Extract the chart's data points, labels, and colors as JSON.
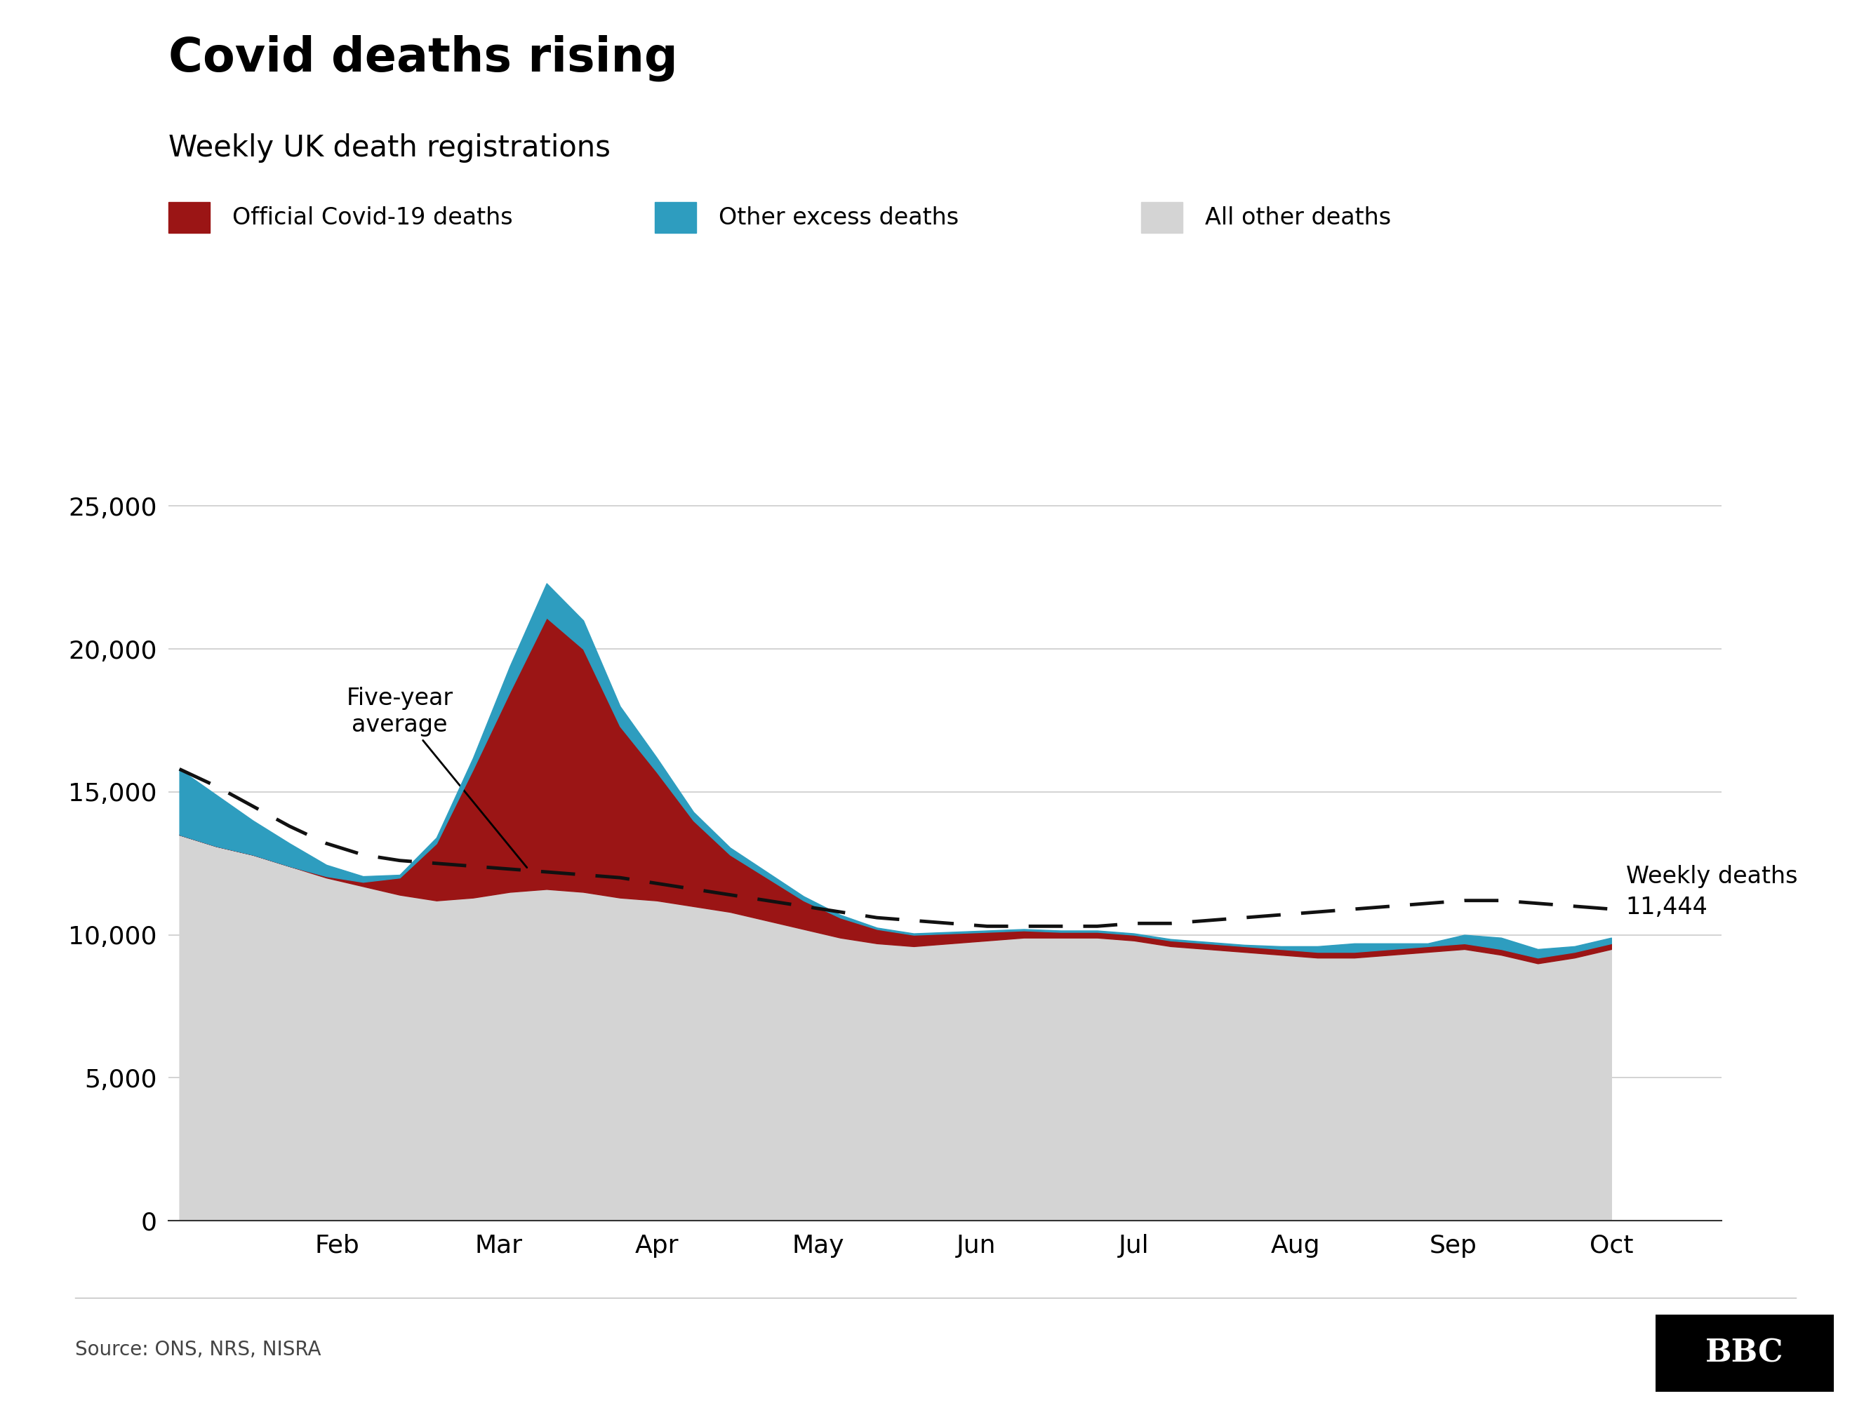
{
  "title": "Covid deaths rising",
  "subtitle": "Weekly UK death registrations",
  "legend_items": [
    {
      "label": "Official Covid-19 deaths",
      "color": "#9b1515"
    },
    {
      "label": "Other excess deaths",
      "color": "#2e9dbf"
    },
    {
      "label": "All other deaths",
      "color": "#d4d4d4"
    }
  ],
  "source": "Source: ONS, NRS, NISRA",
  "annotation_fiveyear": "Five-year\naverage",
  "annotation_weekly": "Weekly deaths\n11,444",
  "ylim": [
    0,
    27000
  ],
  "yticks": [
    0,
    5000,
    10000,
    15000,
    20000,
    25000
  ],
  "background_color": "#ffffff",
  "plot_bg_color": "#ffffff",
  "grid_color": "#cccccc",
  "dashed_line_color": "#111111",
  "covid_color": "#9b1515",
  "excess_color": "#2e9dbf",
  "other_color": "#d4d4d4",
  "weeks": [
    0,
    1,
    2,
    3,
    4,
    5,
    6,
    7,
    8,
    9,
    10,
    11,
    12,
    13,
    14,
    15,
    16,
    17,
    18,
    19,
    20,
    21,
    22,
    23,
    24,
    25,
    26,
    27,
    28,
    29,
    30,
    31,
    32,
    33,
    34,
    35,
    36,
    37,
    38,
    39
  ],
  "all_other_deaths": [
    13500,
    13100,
    12800,
    12400,
    12000,
    11700,
    11400,
    11200,
    11300,
    11500,
    11600,
    11500,
    11300,
    11200,
    11000,
    10800,
    10500,
    10200,
    9900,
    9700,
    9600,
    9700,
    9800,
    9900,
    9900,
    9900,
    9800,
    9600,
    9500,
    9400,
    9300,
    9200,
    9200,
    9300,
    9400,
    9500,
    9300,
    9000,
    9200,
    9500
  ],
  "covid_deaths": [
    0,
    0,
    0,
    0,
    50,
    150,
    600,
    2000,
    4500,
    7000,
    9500,
    8500,
    6000,
    4500,
    3000,
    2000,
    1500,
    1000,
    700,
    500,
    400,
    350,
    300,
    250,
    200,
    200,
    200,
    200,
    200,
    200,
    200,
    200,
    200,
    200,
    200,
    200,
    200,
    200,
    200,
    200
  ],
  "excess_deaths": [
    2300,
    1800,
    1200,
    800,
    400,
    200,
    100,
    200,
    400,
    900,
    1200,
    1000,
    700,
    500,
    300,
    250,
    200,
    150,
    100,
    50,
    50,
    50,
    50,
    50,
    50,
    50,
    50,
    50,
    50,
    50,
    100,
    200,
    300,
    200,
    100,
    300,
    400,
    300,
    200,
    200
  ],
  "five_year_avg": [
    15800,
    15200,
    14500,
    13800,
    13200,
    12800,
    12600,
    12500,
    12400,
    12300,
    12200,
    12100,
    12000,
    11800,
    11600,
    11400,
    11200,
    11000,
    10800,
    10600,
    10500,
    10400,
    10300,
    10300,
    10300,
    10300,
    10400,
    10400,
    10500,
    10600,
    10700,
    10800,
    10900,
    11000,
    11100,
    11200,
    11200,
    11100,
    11000,
    10900
  ],
  "title_fontsize": 48,
  "subtitle_fontsize": 30,
  "legend_fontsize": 24,
  "tick_fontsize": 26,
  "annotation_fontsize": 24,
  "source_fontsize": 20
}
